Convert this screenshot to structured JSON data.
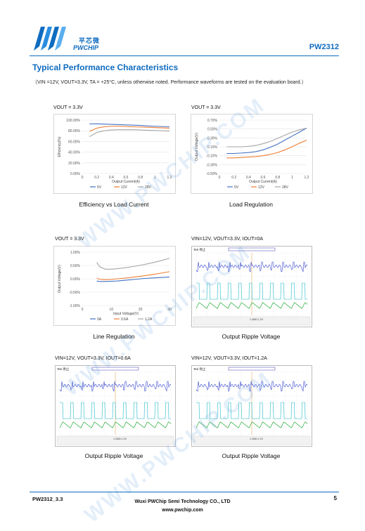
{
  "header": {
    "logo_cn": "平芯微",
    "logo_en": "PWCHIP",
    "part": "PW2312"
  },
  "section_title": "Typical Performance Characteristics",
  "conditions": "（VIN =12V, VOUT=3.3V, TA = +25°C, unless otherwise noted. Performance waveforms are tested on the evaluation board.）",
  "charts": [
    {
      "cond_label": "VOUT = 3.3V",
      "caption": "Efficiency vs Load Current",
      "chart_data": {
        "type": "line",
        "title": "",
        "xlabel": "Output Current(A)",
        "ylabel": "Efficiency(%)",
        "xlim": [
          0,
          1.2
        ],
        "ylim": [
          0,
          100
        ],
        "x_ticks": [
          "0",
          "0.2",
          "0.4",
          "0.6",
          "0.8",
          "1",
          "1.2"
        ],
        "y_ticks": [
          "0.00%",
          "20.00%",
          "40.00%",
          "60.00%",
          "80.00%",
          "100.00%"
        ],
        "legend_position": "bottom",
        "series": [
          {
            "name": "5V",
            "color": "#4472c4",
            "x": [
              0.1,
              0.2,
              0.3,
              0.4,
              0.5,
              0.6,
              0.7,
              0.8,
              0.9,
              1.0,
              1.1,
              1.2
            ],
            "y": [
              93,
              93,
              92.5,
              92,
              91.5,
              91,
              90.5,
              90,
              89,
              88.5,
              88,
              87.5
            ]
          },
          {
            "name": "12V",
            "color": "#ed7d31",
            "x": [
              0.1,
              0.2,
              0.3,
              0.4,
              0.5,
              0.6,
              0.7,
              0.8,
              0.9,
              1.0,
              1.1,
              1.2
            ],
            "y": [
              79,
              85,
              87.5,
              88.5,
              88.5,
              88,
              87.5,
              87,
              86.5,
              86,
              85.5,
              85
            ]
          },
          {
            "name": "28V",
            "color": "#a5a5a5",
            "x": [
              0.1,
              0.2,
              0.3,
              0.4,
              0.5,
              0.6,
              0.7,
              0.8,
              0.9,
              1.0,
              1.1,
              1.2
            ],
            "y": [
              69,
              77,
              80,
              81.5,
              82,
              82,
              82,
              81.5,
              81,
              80.5,
              80,
              79.5
            ]
          }
        ]
      }
    },
    {
      "cond_label": "VOUT = 3.3V",
      "caption": "Load Regulation",
      "chart_data": {
        "type": "line",
        "title": "",
        "xlabel": "Output Current(A)",
        "ylabel": "Output Voltage(V)",
        "xlim": [
          0,
          1.2
        ],
        "ylim": [
          -0.5,
          0.7
        ],
        "x_ticks": [
          "0",
          "0.2",
          "0.4",
          "0.6",
          "0.8",
          "1",
          "1.2"
        ],
        "y_ticks": [
          "-0.50%",
          "-0.30%",
          "-0.10%",
          "0.10%",
          "0.30%",
          "0.50%",
          "0.70%"
        ],
        "legend_position": "bottom",
        "series": [
          {
            "name": "5V",
            "color": "#4472c4",
            "x": [
              0.1,
              0.2,
              0.3,
              0.4,
              0.5,
              0.6,
              0.7,
              0.8,
              0.9,
              1.0,
              1.1,
              1.2
            ],
            "y": [
              -0.05,
              -0.05,
              -0.04,
              -0.03,
              -0.01,
              0.03,
              0.09,
              0.16,
              0.25,
              0.34,
              0.43,
              0.52
            ]
          },
          {
            "name": "12V",
            "color": "#ed7d31",
            "x": [
              0.1,
              0.2,
              0.3,
              0.4,
              0.5,
              0.6,
              0.7,
              0.8,
              0.9,
              1.0,
              1.1,
              1.2
            ],
            "y": [
              -0.15,
              -0.15,
              -0.14,
              -0.13,
              -0.12,
              -0.1,
              -0.07,
              -0.03,
              0.03,
              0.1,
              0.18,
              0.25
            ]
          },
          {
            "name": "28V",
            "color": "#a5a5a5",
            "x": [
              0.1,
              0.2,
              0.3,
              0.4,
              0.5,
              0.6,
              0.7,
              0.8,
              0.9,
              1.0,
              1.1,
              1.2
            ],
            "y": [
              0.1,
              0.1,
              0.1,
              0.11,
              0.13,
              0.17,
              0.22,
              0.29,
              0.36,
              0.43,
              0.48,
              0.52
            ]
          }
        ]
      }
    },
    {
      "cond_label": "VOUT = 3.3V",
      "caption": "Line Regulation",
      "chart_data": {
        "type": "line",
        "title": "",
        "xlabel": "Input Voltage(V)",
        "ylabel": "Output Voltage(V)",
        "xlim": [
          0,
          30
        ],
        "ylim": [
          -1,
          1
        ],
        "x_ticks": [
          "0",
          "10",
          "20",
          "30"
        ],
        "y_ticks": [
          "-1.00%",
          "-0.50%",
          "0.00%",
          "0.50%",
          "1.00%"
        ],
        "legend_position": "bottom",
        "series": [
          {
            "name": "0A",
            "color": "#4472c4",
            "x": [
              5,
              6,
              8,
              10,
              12,
              15,
              18,
              21,
              24,
              27,
              30
            ],
            "y": [
              -0.08,
              -0.1,
              -0.1,
              -0.09,
              -0.08,
              -0.05,
              -0.02,
              0.01,
              0.03,
              0.05,
              0.07
            ]
          },
          {
            "name": "0.6A",
            "color": "#ed7d31",
            "x": [
              5,
              6,
              8,
              10,
              12,
              15,
              18,
              21,
              24,
              27,
              30
            ],
            "y": [
              0.02,
              -0.02,
              -0.03,
              -0.02,
              0.0,
              0.03,
              0.07,
              0.11,
              0.16,
              0.21,
              0.27
            ]
          },
          {
            "name": "1.2A",
            "color": "#a5a5a5",
            "x": [
              5,
              6,
              8,
              10,
              12,
              15,
              18,
              21,
              24,
              27,
              30
            ],
            "y": [
              0.62,
              0.45,
              0.36,
              0.36,
              0.38,
              0.42,
              0.47,
              0.53,
              0.6,
              0.68,
              0.77
            ]
          }
        ]
      }
    }
  ],
  "scopes": [
    {
      "cond_label": "VIN=12V, VOUT=3.3V, IOUT=0A",
      "caption": "Output Ripple Voltage",
      "run_label": "Tek 停止",
      "readout": "1.2MΩ 1.2V"
    },
    {
      "cond_label": "VIN=12V, VOUT=3.3V, IOUT=0.6A",
      "caption": "Output Ripple Voltage",
      "run_label": "Tek 停止",
      "readout": "1.2MΩ 1.2V"
    },
    {
      "cond_label": "VIN=12V, VOUT=3.3V, IOUT=1.2A",
      "caption": "Output Ripple Voltage",
      "run_label": "Tek 停止",
      "readout": "1.2MΩ 1.2V"
    }
  ],
  "watermark": "WWW.PWCHIP.COM",
  "footer": {
    "doc_id": "PW2312_3.3",
    "company": "Wuxi PWChip Semi Technology CO., LTD",
    "website": "www.pwchip.com",
    "page": "5"
  },
  "colors": {
    "brand": "#0f6cbf",
    "s5v": "#4472c4",
    "s12v": "#ed7d31",
    "s28v": "#a5a5a5"
  }
}
